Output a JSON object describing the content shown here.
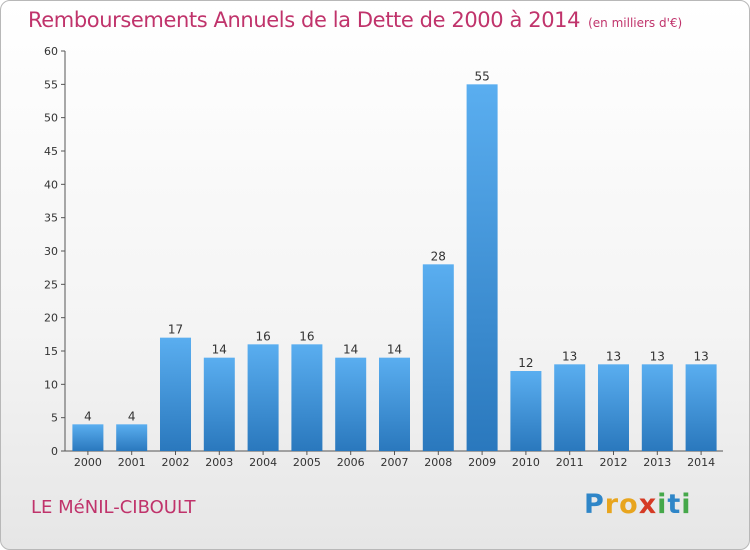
{
  "chart_data": {
    "type": "bar",
    "title": "Remboursements Annuels de la Dette de 2000 à 2014",
    "subtitle": "(en milliers d'€)",
    "categories": [
      "2000",
      "2001",
      "2002",
      "2003",
      "2004",
      "2005",
      "2006",
      "2007",
      "2008",
      "2009",
      "2010",
      "2011",
      "2012",
      "2013",
      "2014"
    ],
    "values": [
      4,
      4,
      17,
      14,
      16,
      16,
      14,
      14,
      28,
      55,
      12,
      13,
      13,
      13,
      13
    ],
    "ylim": [
      0,
      60
    ],
    "yticks": [
      0,
      5,
      10,
      15,
      20,
      25,
      30,
      35,
      40,
      45,
      50,
      55,
      60
    ],
    "xlabel": "",
    "ylabel": "",
    "grid": false,
    "bar_color": "#3d94dc"
  },
  "footer": {
    "commune": "LE MéNIL-CIBOULT"
  },
  "logo": {
    "letters": [
      "P",
      "r",
      "o",
      "x",
      "i",
      "t",
      "i"
    ],
    "colors": [
      "#2f86c8",
      "#e8a51e",
      "#e8a51e",
      "#d53a24",
      "#46a84a",
      "#2f86c8",
      "#46a84a"
    ]
  }
}
